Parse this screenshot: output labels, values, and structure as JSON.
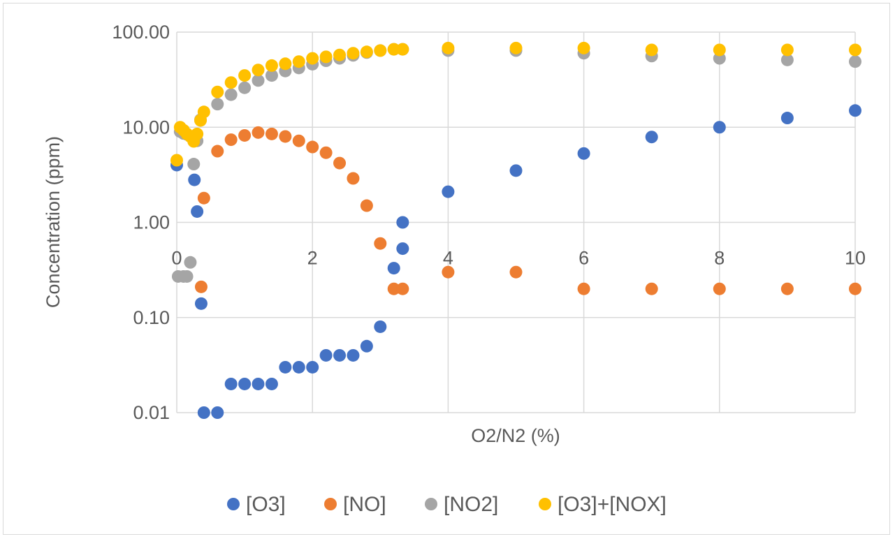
{
  "chart_data": {
    "type": "scatter",
    "title": "",
    "xlabel": "O2/N2 (%)",
    "ylabel": "Concentration (ppm)",
    "xlim": [
      0,
      10
    ],
    "ylim": [
      0.01,
      100
    ],
    "y_scale": "log",
    "grid": true,
    "legend_position": "bottom",
    "x_tick_labels": [
      "0",
      "2",
      "4",
      "6",
      "8",
      "10"
    ],
    "y_tick_labels": [
      "0.01",
      "0.10",
      "1.00",
      "10.00",
      "100.00"
    ],
    "series": [
      {
        "name": "[O3]",
        "color": "#4472C4",
        "points": [
          [
            0,
            4
          ],
          [
            0.26,
            2.8
          ],
          [
            0.3,
            1.3
          ],
          [
            0.36,
            0.14
          ],
          [
            0.4,
            0.01
          ],
          [
            0.6,
            0.01
          ],
          [
            0.8,
            0.02
          ],
          [
            1.0,
            0.02
          ],
          [
            1.2,
            0.02
          ],
          [
            1.4,
            0.02
          ],
          [
            1.6,
            0.03
          ],
          [
            1.8,
            0.03
          ],
          [
            2.0,
            0.03
          ],
          [
            2.2,
            0.04
          ],
          [
            2.4,
            0.04
          ],
          [
            2.6,
            0.04
          ],
          [
            2.8,
            0.05
          ],
          [
            3.0,
            0.08
          ],
          [
            3.2,
            0.33
          ],
          [
            3.33,
            0.53
          ],
          [
            3.33,
            1.0
          ],
          [
            4,
            2.1
          ],
          [
            5,
            3.5
          ],
          [
            6,
            5.3
          ],
          [
            7,
            7.9
          ],
          [
            8,
            10
          ],
          [
            9,
            12.5
          ],
          [
            10,
            15
          ]
        ]
      },
      {
        "name": "[NO]",
        "color": "#ED7D31",
        "points": [
          [
            0.36,
            0.21
          ],
          [
            0.4,
            1.8
          ],
          [
            0.6,
            5.6
          ],
          [
            0.8,
            7.4
          ],
          [
            1.0,
            8.2
          ],
          [
            1.2,
            8.8
          ],
          [
            1.4,
            8.5
          ],
          [
            1.6,
            8.0
          ],
          [
            1.8,
            7.2
          ],
          [
            2.0,
            6.2
          ],
          [
            2.2,
            5.4
          ],
          [
            2.4,
            4.2
          ],
          [
            2.6,
            2.9
          ],
          [
            2.8,
            1.5
          ],
          [
            3.0,
            0.6
          ],
          [
            3.2,
            0.2
          ],
          [
            3.33,
            0.2
          ],
          [
            4,
            0.3
          ],
          [
            5,
            0.3
          ],
          [
            6,
            0.2
          ],
          [
            7,
            0.2
          ],
          [
            8,
            0.2
          ],
          [
            9,
            0.2
          ],
          [
            10,
            0.2
          ]
        ]
      },
      {
        "name": "[NO2]",
        "color": "#A5A5A5",
        "points": [
          [
            0.02,
            0.27
          ],
          [
            0.1,
            0.27
          ],
          [
            0.15,
            0.27
          ],
          [
            0.2,
            0.38
          ],
          [
            0.25,
            4.1
          ],
          [
            0.3,
            7.2
          ],
          [
            0.05,
            9.0
          ],
          [
            0.1,
            8.6
          ],
          [
            0.15,
            8.4
          ],
          [
            0.35,
            12
          ],
          [
            0.6,
            17.5
          ],
          [
            0.8,
            22
          ],
          [
            1.0,
            26
          ],
          [
            1.2,
            31
          ],
          [
            1.4,
            35
          ],
          [
            1.6,
            39
          ],
          [
            1.8,
            42
          ],
          [
            2.0,
            46
          ],
          [
            2.2,
            50
          ],
          [
            2.4,
            53
          ],
          [
            2.6,
            57
          ],
          [
            2.8,
            61
          ],
          [
            3.0,
            64
          ],
          [
            3.2,
            66
          ],
          [
            3.33,
            66
          ],
          [
            4,
            64
          ],
          [
            5,
            64
          ],
          [
            6,
            60
          ],
          [
            7,
            56
          ],
          [
            8,
            53
          ],
          [
            9,
            51
          ],
          [
            10,
            49
          ]
        ]
      },
      {
        "name": "[O3]+[NOX]",
        "color": "#FFC000",
        "points": [
          [
            0,
            4.5
          ],
          [
            0.05,
            10
          ],
          [
            0.1,
            9.3
          ],
          [
            0.15,
            8.5
          ],
          [
            0.2,
            8.0
          ],
          [
            0.25,
            7.1
          ],
          [
            0.3,
            8.5
          ],
          [
            0.35,
            11.8
          ],
          [
            0.4,
            14.5
          ],
          [
            0.6,
            23.5
          ],
          [
            0.8,
            29.5
          ],
          [
            1.0,
            35
          ],
          [
            1.2,
            40
          ],
          [
            1.4,
            44.5
          ],
          [
            1.6,
            46.5
          ],
          [
            1.8,
            49
          ],
          [
            2.0,
            53
          ],
          [
            2.2,
            55
          ],
          [
            2.4,
            57.5
          ],
          [
            2.6,
            60
          ],
          [
            2.8,
            62
          ],
          [
            3.0,
            64
          ],
          [
            3.2,
            66
          ],
          [
            3.33,
            66
          ],
          [
            4,
            68
          ],
          [
            5,
            68
          ],
          [
            6,
            68
          ],
          [
            7,
            65
          ],
          [
            8,
            65
          ],
          [
            9,
            65
          ],
          [
            10,
            65
          ]
        ]
      }
    ]
  }
}
